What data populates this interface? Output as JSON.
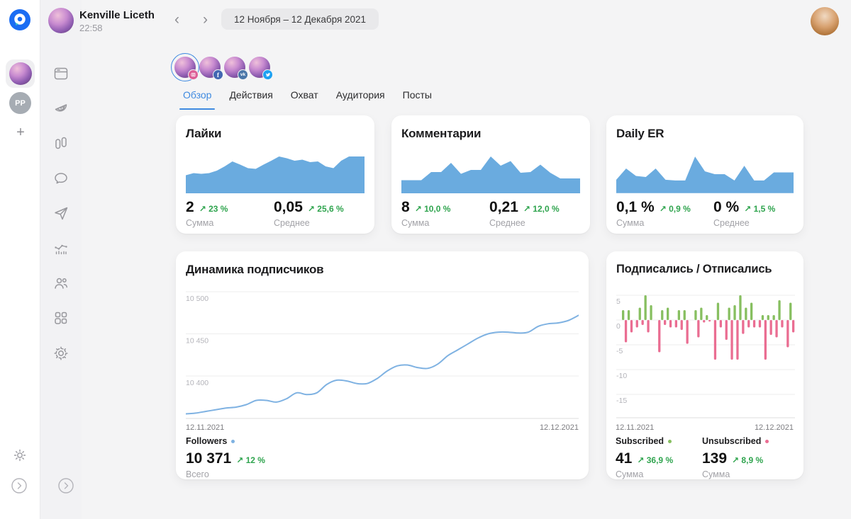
{
  "colors": {
    "accent_blue": "#3f8ae0",
    "logo_blue": "#1b6df3",
    "area_blue": "#6aabdf",
    "line_blue": "#7fb2e2",
    "bar_green": "#87bf60",
    "bar_pink": "#ea6d92",
    "change_green": "#2fa44e"
  },
  "header": {
    "user_name": "Kenville Liceth",
    "user_time": "22:58",
    "prev": "‹",
    "next": "›",
    "date_range": "12 Ноября – 12 Декабря 2021"
  },
  "rail": {
    "pp": "PP",
    "add": "+"
  },
  "accounts": [
    {
      "platform": "instagram",
      "selected": true
    },
    {
      "platform": "facebook",
      "selected": false
    },
    {
      "platform": "vk",
      "selected": false
    },
    {
      "platform": "twitter",
      "selected": false
    }
  ],
  "badges": {
    "fb": "f",
    "vk": "vk"
  },
  "tabs": [
    {
      "label": "Обзор",
      "active": true
    },
    {
      "label": "Действия",
      "active": false
    },
    {
      "label": "Охват",
      "active": false
    },
    {
      "label": "Аудитория",
      "active": false
    },
    {
      "label": "Посты",
      "active": false
    }
  ],
  "summary_cards": [
    {
      "title": "Лайки",
      "stat1_value": "2",
      "stat1_change": "↗ 23 %",
      "stat1_label": "Сумма",
      "stat2_value": "0,05",
      "stat2_change": "↗ 25,6 %",
      "stat2_label": "Среднее"
    },
    {
      "title": "Комментарии",
      "stat1_value": "8",
      "stat1_change": "↗ 10,0 %",
      "stat1_label": "Сумма",
      "stat2_value": "0,21",
      "stat2_change": "↗ 12,0 %",
      "stat2_label": "Среднее"
    },
    {
      "title": "Daily ER",
      "stat1_value": "0,1 %",
      "stat1_change": "↗ 0,9 %",
      "stat1_label": "Сумма",
      "stat2_value": "0 %",
      "stat2_change": "↗ 1,5 %",
      "stat2_label": "Среднее"
    }
  ],
  "followers_card": {
    "title": "Динамика подписчиков",
    "x_start": "12.11.2021",
    "x_end": "12.12.2021",
    "legend": "Followers",
    "value": "10 371",
    "change": "↗ 12 %",
    "label": "Всего"
  },
  "subs_card": {
    "title": "Подписались / Отписались",
    "x_start": "12.11.2021",
    "x_end": "12.12.2021",
    "legend1": "Subscribed",
    "value1": "41",
    "change1": "↗ 36,9 %",
    "label1": "Сумма",
    "legend2": "Unsubscribed",
    "value2": "139",
    "change2": "↗ 8,9 %",
    "label2": "Сумма"
  },
  "chart_data": [
    {
      "type": "area",
      "name": "likes-sparkline",
      "color": "#6aabdf",
      "values": [
        47,
        53,
        51,
        53,
        60,
        72,
        86,
        77,
        67,
        65,
        77,
        88,
        100,
        95,
        88,
        91,
        84,
        86,
        72,
        67,
        88,
        100,
        100,
        100
      ]
    },
    {
      "type": "area",
      "name": "comments-sparkline",
      "color": "#6aabdf",
      "values": [
        33,
        33,
        33,
        56,
        56,
        82,
        51,
        62,
        62,
        100,
        74,
        87,
        54,
        56,
        77,
        54,
        38,
        38,
        38
      ]
    },
    {
      "type": "area",
      "name": "daily-er-sparkline",
      "color": "#6aabdf",
      "values": [
        34,
        66,
        45,
        42,
        66,
        34,
        32,
        32,
        100,
        58,
        50,
        50,
        32,
        74,
        32,
        32,
        55,
        55,
        55
      ]
    },
    {
      "type": "line",
      "name": "followers-dynamics",
      "title": "Динамика подписчиков",
      "color": "#7fb2e2",
      "x_start": "12.11.2021",
      "x_end": "12.12.2021",
      "ylim": [
        10345,
        10505
      ],
      "grid": true,
      "legend": "Followers",
      "y_ticks": [
        {
          "label": "10 500",
          "v": 10500
        },
        {
          "label": "10 450",
          "v": 10450
        },
        {
          "label": "10 400",
          "v": 10400
        }
      ],
      "values": [
        10355,
        10356,
        10358,
        10360,
        10362,
        10363,
        10366,
        10371,
        10371,
        10369,
        10373,
        10380,
        10378,
        10380,
        10390,
        10395,
        10394,
        10391,
        10391,
        10397,
        10406,
        10412,
        10413,
        10410,
        10409,
        10414,
        10424,
        10431,
        10438,
        10445,
        10450,
        10452,
        10452,
        10451,
        10452,
        10459,
        10462,
        10463,
        10466,
        10472
      ]
    },
    {
      "type": "bar",
      "name": "subscribed-unsubscribed",
      "title": "Подписались / Отписались",
      "x_start": "12.11.2021",
      "x_end": "12.12.2021",
      "grid": true,
      "y_ticks": [
        {
          "label": "5",
          "v": 5
        },
        {
          "label": "0",
          "v": 0
        },
        {
          "label": "-5",
          "v": -5
        },
        {
          "label": "-10",
          "v": -10
        },
        {
          "label": "-15",
          "v": -15
        }
      ],
      "series": [
        {
          "name": "Subscribed",
          "color": "#87bf60",
          "values": [
            2,
            2,
            0,
            2.5,
            5,
            3,
            0,
            2,
            2.5,
            0,
            2,
            2,
            0,
            2,
            2.5,
            1,
            0,
            3.5,
            0,
            2.5,
            3,
            5,
            2.5,
            3.5,
            0,
            1,
            1,
            1,
            4,
            0,
            3.5
          ]
        },
        {
          "name": "Unsubscribed",
          "color": "#ea6d92",
          "values": [
            -4.5,
            -2.5,
            -1.5,
            -1,
            -2.5,
            0,
            -6.5,
            -1,
            -1.5,
            -1.5,
            -2,
            -4.8,
            0,
            -3.5,
            -0.5,
            -0.3,
            -8,
            -1.5,
            -4,
            -8,
            -8,
            -2.8,
            -1.5,
            -1.5,
            -1.5,
            -8,
            -3,
            -3.5,
            -1.5,
            -5.5,
            -2.5
          ]
        }
      ]
    }
  ]
}
